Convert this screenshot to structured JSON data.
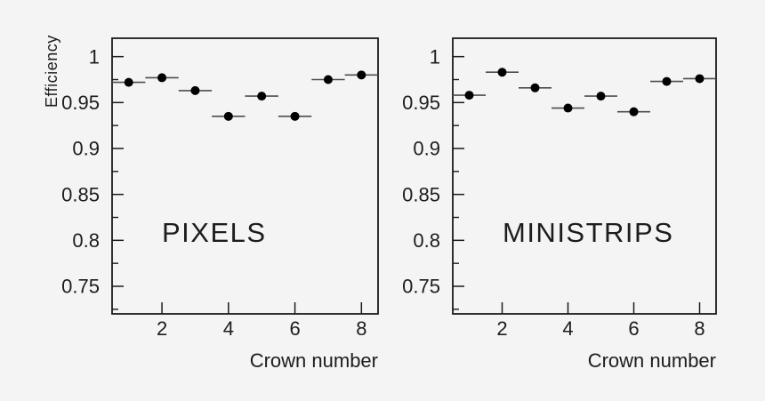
{
  "colors": {
    "background": "#f3f4f3",
    "frame": "#1b1b1b",
    "text": "#1d1d1d",
    "marker": "#000000",
    "error_bar": "#4d4d4d"
  },
  "chart_data": [
    {
      "type": "scatter",
      "title": "PIXELS",
      "xlabel": "Crown number",
      "ylabel": "Efficiency",
      "x": [
        1,
        2,
        3,
        4,
        5,
        6,
        7,
        8
      ],
      "y": [
        0.972,
        0.977,
        0.963,
        0.935,
        0.957,
        0.935,
        0.975,
        0.98
      ],
      "x_bin_half_width": 0.5,
      "xlim": [
        0.5,
        8.5
      ],
      "ylim": [
        0.72,
        1.02
      ],
      "x_major_ticks": [
        2,
        4,
        6,
        8
      ],
      "y_major_ticks": [
        {
          "value": 1.0,
          "label": "1"
        },
        {
          "value": 0.95,
          "label": "0.95"
        },
        {
          "value": 0.9,
          "label": "0.9"
        },
        {
          "value": 0.85,
          "label": "0.85"
        },
        {
          "value": 0.8,
          "label": "0.8"
        },
        {
          "value": 0.75,
          "label": "0.75"
        }
      ],
      "y_minor_ticks": [
        0.975,
        0.925,
        0.875,
        0.825,
        0.775,
        0.725
      ],
      "marker": "filled-circle",
      "grid": false,
      "legend": "none"
    },
    {
      "type": "scatter",
      "title": "MINISTRIPS",
      "xlabel": "Crown number",
      "ylabel": "",
      "x": [
        1,
        2,
        3,
        4,
        5,
        6,
        7,
        8
      ],
      "y": [
        0.958,
        0.983,
        0.966,
        0.944,
        0.957,
        0.94,
        0.973,
        0.976
      ],
      "x_bin_half_width": 0.5,
      "xlim": [
        0.5,
        8.5
      ],
      "ylim": [
        0.72,
        1.02
      ],
      "x_major_ticks": [
        2,
        4,
        6,
        8
      ],
      "y_major_ticks": [
        {
          "value": 1.0,
          "label": "1"
        },
        {
          "value": 0.95,
          "label": "0.95"
        },
        {
          "value": 0.9,
          "label": "0.9"
        },
        {
          "value": 0.85,
          "label": "0.85"
        },
        {
          "value": 0.8,
          "label": "0.8"
        },
        {
          "value": 0.75,
          "label": "0.75"
        }
      ],
      "y_minor_ticks": [
        0.975,
        0.925,
        0.875,
        0.825,
        0.775,
        0.725
      ],
      "marker": "filled-circle",
      "grid": false,
      "legend": "none"
    }
  ]
}
